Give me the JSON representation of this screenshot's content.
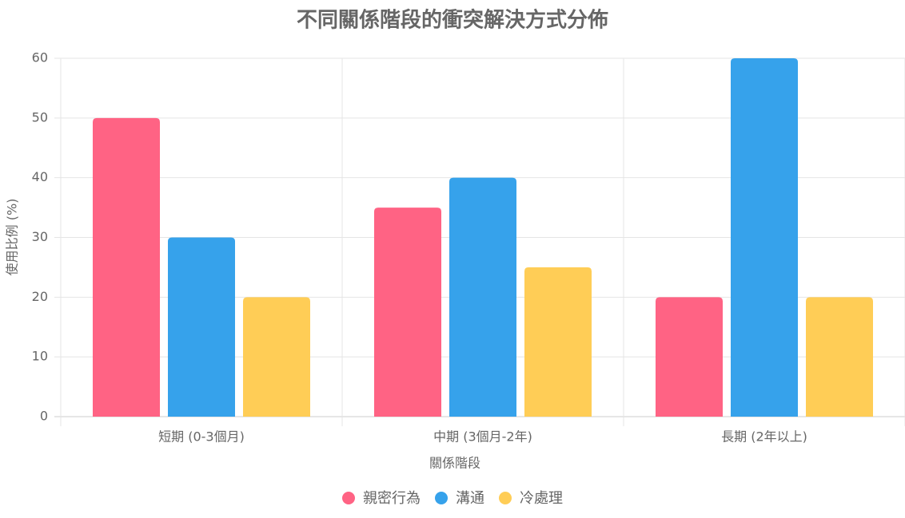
{
  "chart_data": {
    "type": "bar",
    "title": "不同關係階段的衝突解決方式分佈",
    "x_label": "關係階段",
    "y_label": "使用比例 (%)",
    "categories": [
      "短期 (0-3個月)",
      "中期 (3個月-2年)",
      "長期 (2年以上)"
    ],
    "series": [
      {
        "name": "親密行為",
        "color": "#ff6384",
        "values": [
          50,
          35,
          20
        ]
      },
      {
        "name": "溝通",
        "color": "#36a2eb",
        "values": [
          30,
          40,
          60
        ]
      },
      {
        "name": "冷處理",
        "color": "#ffcd56",
        "values": [
          20,
          25,
          20
        ]
      }
    ],
    "ylim": [
      0,
      60
    ],
    "yticks": [
      0,
      10,
      20,
      30,
      40,
      50,
      60
    ],
    "grid": true,
    "legend": "bottom"
  }
}
